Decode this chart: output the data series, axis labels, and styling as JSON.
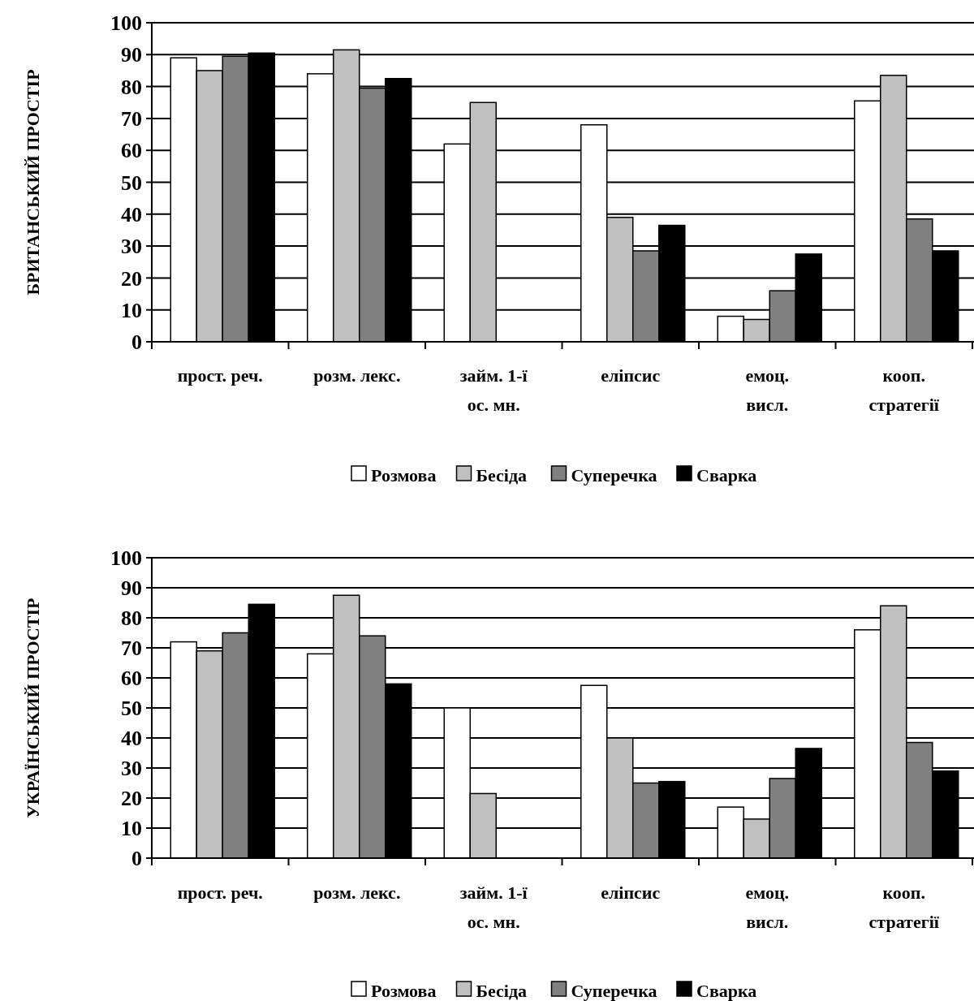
{
  "chart_data": [
    {
      "type": "bar",
      "ylabel": "БРИТАНСЬКИЙ ПРОСТІР",
      "categories": [
        "прост. реч.",
        "розм. лекс.",
        "займ. 1-ї\nос. мн.",
        "еліпсис",
        "емоц.\nвисл.",
        "кооп.\nстратегії"
      ],
      "series": [
        {
          "name": "Розмова",
          "color": "#ffffff",
          "values": [
            89,
            84,
            62,
            68,
            8,
            75.5
          ]
        },
        {
          "name": "Бесіда",
          "color": "#c0c0c0",
          "values": [
            85,
            91.5,
            75,
            39,
            7,
            83.5
          ]
        },
        {
          "name": "Суперечка",
          "color": "#808080",
          "values": [
            89.5,
            79.5,
            null,
            28.5,
            16,
            38.5
          ]
        },
        {
          "name": "Сварка",
          "color": "#000000",
          "values": [
            90.5,
            82.5,
            null,
            36.5,
            27.5,
            28.5
          ]
        }
      ],
      "ylim": [
        0,
        100
      ],
      "yticks": [
        0,
        10,
        20,
        30,
        40,
        50,
        60,
        70,
        80,
        90,
        100
      ],
      "grid": "y",
      "legend": "bottom"
    },
    {
      "type": "bar",
      "ylabel": "УКРАЇНСЬКИЙ ПРОСТІР",
      "categories": [
        "прост. реч.",
        "розм. лекс.",
        "займ. 1-ї\nос. мн.",
        "еліпсис",
        "емоц.\nвисл.",
        "кооп.\nстратегії"
      ],
      "series": [
        {
          "name": "Розмова",
          "color": "#ffffff",
          "values": [
            72,
            68,
            50,
            57.5,
            17,
            76
          ]
        },
        {
          "name": "Бесіда",
          "color": "#c0c0c0",
          "values": [
            69,
            87.5,
            21.5,
            40,
            13,
            84
          ]
        },
        {
          "name": "Суперечка",
          "color": "#808080",
          "values": [
            75,
            74,
            null,
            25,
            26.5,
            38.5
          ]
        },
        {
          "name": "Сварка",
          "color": "#000000",
          "values": [
            84.5,
            58,
            null,
            25.5,
            36.5,
            29
          ]
        }
      ],
      "ylim": [
        0,
        100
      ],
      "yticks": [
        0,
        10,
        20,
        30,
        40,
        50,
        60,
        70,
        80,
        90,
        100
      ],
      "grid": "y",
      "legend": "bottom"
    }
  ]
}
